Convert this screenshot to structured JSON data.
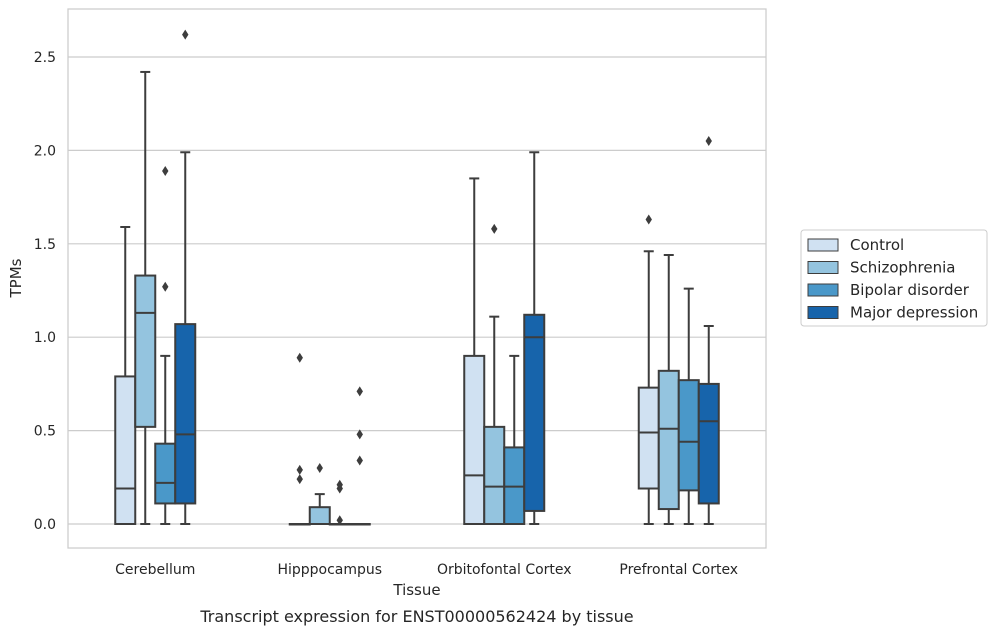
{
  "chart_data": {
    "type": "box",
    "title": "",
    "caption": "Transcript expression for ENST00000562424 by tissue",
    "xlabel": "Tissue",
    "ylabel": "TPMs",
    "ylim": [
      -0.13,
      2.75
    ],
    "yticks": [
      "0.0",
      "0.5",
      "1.0",
      "1.5",
      "2.0",
      "2.5"
    ],
    "grid": "horizontal",
    "legend_position": "right",
    "categories": [
      "Cerebellum",
      "Hipppocampus",
      "Orbitofontal Cortex",
      "Prefrontal Cortex"
    ],
    "series": [
      {
        "name": "Control",
        "color": "#d0e1f2",
        "boxes": [
          {
            "whislo": 0.0,
            "q1": 0.0,
            "med": 0.19,
            "q3": 0.79,
            "whishi": 1.59,
            "fliers": []
          },
          {
            "whislo": 0.0,
            "q1": 0.0,
            "med": 0.0,
            "q3": 0.0,
            "whishi": 0.0,
            "fliers": [
              0.24,
              0.29,
              0.89
            ]
          },
          {
            "whislo": 0.0,
            "q1": 0.0,
            "med": 0.26,
            "q3": 0.9,
            "whishi": 1.85,
            "fliers": []
          },
          {
            "whislo": 0.0,
            "q1": 0.19,
            "med": 0.49,
            "q3": 0.73,
            "whishi": 1.46,
            "fliers": [
              1.63
            ]
          }
        ]
      },
      {
        "name": "Schizophrenia",
        "color": "#94c4df",
        "boxes": [
          {
            "whislo": 0.0,
            "q1": 0.52,
            "med": 1.13,
            "q3": 1.33,
            "whishi": 2.42,
            "fliers": []
          },
          {
            "whislo": 0.0,
            "q1": 0.0,
            "med": 0.0,
            "q3": 0.09,
            "whishi": 0.16,
            "fliers": [
              0.3
            ]
          },
          {
            "whislo": 0.0,
            "q1": 0.0,
            "med": 0.2,
            "q3": 0.52,
            "whishi": 1.11,
            "fliers": [
              1.58
            ]
          },
          {
            "whislo": 0.0,
            "q1": 0.08,
            "med": 0.51,
            "q3": 0.82,
            "whishi": 1.44,
            "fliers": []
          }
        ]
      },
      {
        "name": "Bipolar disorder",
        "color": "#4a98c9",
        "boxes": [
          {
            "whislo": 0.0,
            "q1": 0.11,
            "med": 0.22,
            "q3": 0.43,
            "whishi": 0.9,
            "fliers": [
              1.27,
              1.89
            ]
          },
          {
            "whislo": 0.0,
            "q1": 0.0,
            "med": 0.0,
            "q3": 0.0,
            "whishi": 0.0,
            "fliers": [
              0.02,
              0.19,
              0.21
            ]
          },
          {
            "whislo": 0.0,
            "q1": 0.0,
            "med": 0.2,
            "q3": 0.41,
            "whishi": 0.9,
            "fliers": []
          },
          {
            "whislo": 0.0,
            "q1": 0.18,
            "med": 0.44,
            "q3": 0.77,
            "whishi": 1.26,
            "fliers": []
          }
        ]
      },
      {
        "name": "Major depression",
        "color": "#1764ab",
        "boxes": [
          {
            "whislo": 0.0,
            "q1": 0.11,
            "med": 0.48,
            "q3": 1.07,
            "whishi": 1.99,
            "fliers": [
              2.62
            ]
          },
          {
            "whislo": 0.0,
            "q1": 0.0,
            "med": 0.0,
            "q3": 0.0,
            "whishi": 0.0,
            "fliers": [
              0.34,
              0.48,
              0.71
            ]
          },
          {
            "whislo": 0.0,
            "q1": 0.07,
            "med": 1.0,
            "q3": 1.12,
            "whishi": 1.99,
            "fliers": []
          },
          {
            "whislo": 0.0,
            "q1": 0.11,
            "med": 0.55,
            "q3": 0.75,
            "whishi": 1.06,
            "fliers": [
              2.05
            ]
          }
        ]
      }
    ]
  }
}
